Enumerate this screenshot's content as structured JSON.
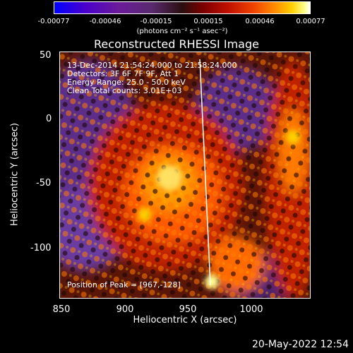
{
  "colorbar": {
    "ticks": [
      "-0.00077",
      "-0.00046",
      "-0.00015",
      "0.00015",
      "0.00046",
      "0.00077"
    ],
    "unit_label": "(photons cm⁻² s⁻¹ asec⁻²)"
  },
  "title": "Reconstructed RHESSI Image",
  "info": {
    "line1": "13-Dec-2014 21:54:24.000 to 21:58:24.000",
    "line2": "Detectors: 3F 6F 7F 9F, Att 1",
    "line3": "Energy Range: 25.0 - 50.0 keV",
    "line4": "Clean     Total counts: 3.01E+03"
  },
  "peak_label": "Position of Peak = [967,-128]",
  "axes": {
    "x_label": "Heliocentric X (arcsec)",
    "y_label": "Heliocentric Y (arcsec)",
    "x_ticks": [
      "850",
      "900",
      "950",
      "1000"
    ],
    "y_ticks": [
      "50",
      "0",
      "-50",
      "-100"
    ]
  },
  "footer_date": "20-May-2022 12:54"
}
